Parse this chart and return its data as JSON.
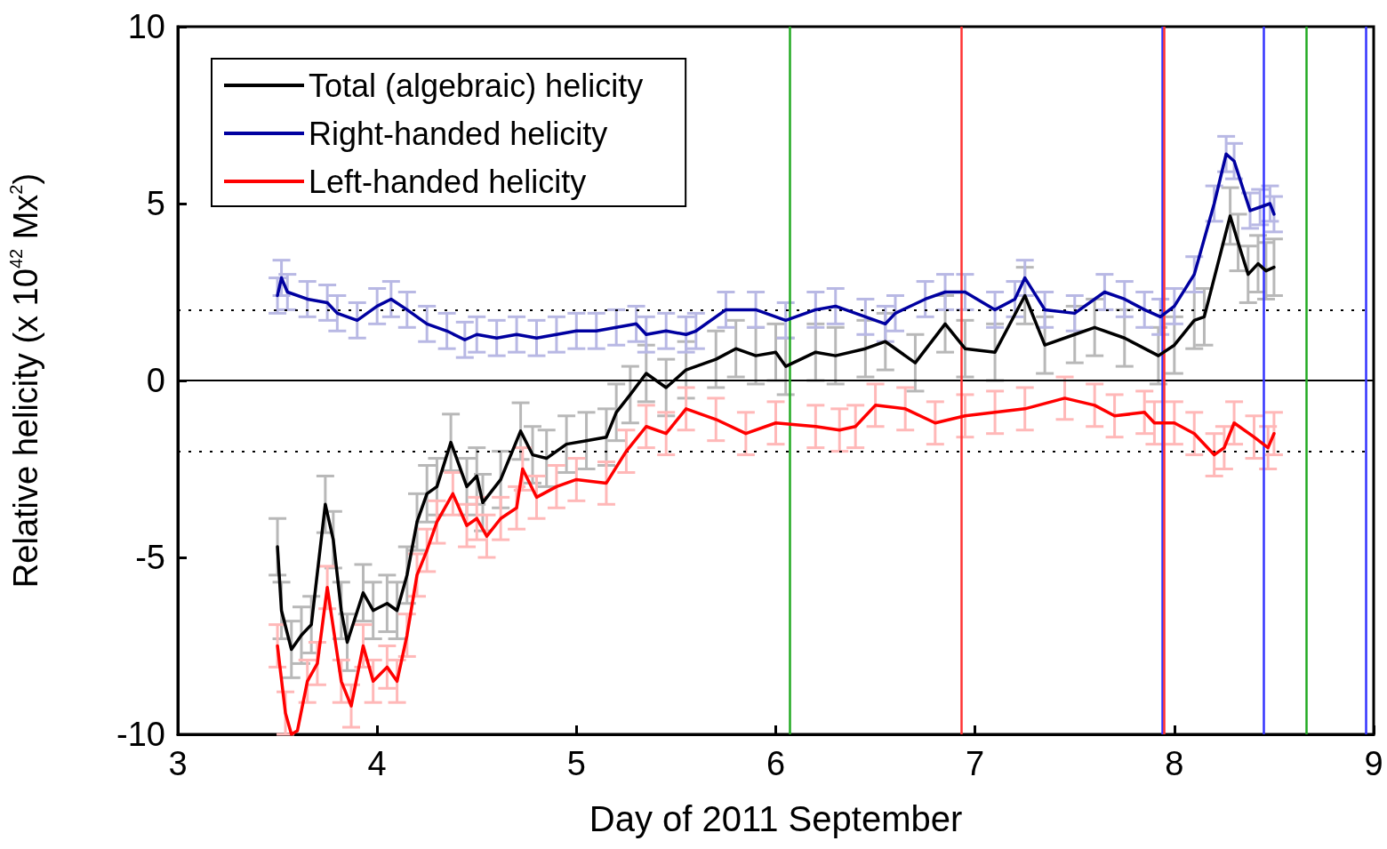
{
  "chart_data": {
    "type": "line",
    "xlabel": "Day of 2011 September",
    "ylabel": "Relative helicity (x 10$^{42}$ Mx$^{2}$)",
    "xlim": [
      3,
      9
    ],
    "xticks": [
      3,
      4,
      5,
      6,
      7,
      8,
      9
    ],
    "ylim": [
      -10,
      10
    ],
    "yticks": [
      -10,
      -5,
      0,
      5,
      10
    ],
    "grid": false,
    "legend": "top left",
    "marker": "none",
    "line_style": "solid",
    "series": [
      {
        "name": "Total (algebraic) helicity",
        "color": "#000000",
        "x": [
          3.5,
          3.52,
          3.57,
          3.62,
          3.67,
          3.74,
          3.78,
          3.82,
          3.85,
          3.93,
          3.98,
          4.05,
          4.1,
          4.15,
          4.2,
          4.25,
          4.3,
          4.37,
          4.45,
          4.5,
          4.53,
          4.62,
          4.72,
          4.78,
          4.85,
          4.95,
          5.05,
          5.15,
          5.2,
          5.27,
          5.35,
          5.45,
          5.55,
          5.7,
          5.8,
          5.9,
          6.0,
          6.05,
          6.2,
          6.3,
          6.45,
          6.55,
          6.7,
          6.85,
          6.95,
          7.1,
          7.25,
          7.35,
          7.5,
          7.6,
          7.75,
          7.92,
          8.0,
          8.1,
          8.15,
          8.28,
          8.32,
          8.37,
          8.42,
          8.46,
          8.5
        ],
        "values": [
          -4.7,
          -6.5,
          -7.6,
          -7.2,
          -6.9,
          -3.5,
          -4.5,
          -6.5,
          -7.4,
          -6.0,
          -6.5,
          -6.3,
          -6.5,
          -5.5,
          -4.0,
          -3.2,
          -3.0,
          -1.75,
          -3.0,
          -2.7,
          -3.45,
          -2.8,
          -1.43,
          -2.1,
          -2.2,
          -1.8,
          -1.7,
          -1.6,
          -0.9,
          -0.4,
          0.2,
          -0.2,
          0.3,
          0.6,
          0.9,
          0.7,
          0.8,
          0.4,
          0.8,
          0.7,
          0.9,
          1.1,
          0.5,
          1.6,
          0.9,
          0.8,
          2.4,
          1.0,
          1.3,
          1.5,
          1.2,
          0.7,
          1.0,
          1.7,
          1.8,
          4.65,
          3.9,
          3.0,
          3.3,
          3.1,
          3.2
        ],
        "errors": [
          0.8,
          0.8,
          0.8,
          0.8,
          0.8,
          0.8,
          0.8,
          0.8,
          0.8,
          0.8,
          0.8,
          0.8,
          0.8,
          0.8,
          0.8,
          0.8,
          0.8,
          0.8,
          0.8,
          0.8,
          0.8,
          0.8,
          0.8,
          0.8,
          0.8,
          0.8,
          0.8,
          0.8,
          0.8,
          0.8,
          0.8,
          0.8,
          0.8,
          0.8,
          0.8,
          0.8,
          0.8,
          0.8,
          0.8,
          0.8,
          0.8,
          0.8,
          0.8,
          0.8,
          0.8,
          0.8,
          0.8,
          0.8,
          0.8,
          0.8,
          0.8,
          0.8,
          0.8,
          0.8,
          0.8,
          0.8,
          0.8,
          0.8,
          0.8,
          0.8,
          0.8
        ]
      },
      {
        "name": "Right-handed helicity",
        "color": "#0000a0",
        "x": [
          3.5,
          3.52,
          3.55,
          3.65,
          3.75,
          3.8,
          3.9,
          4.0,
          4.07,
          4.15,
          4.25,
          4.35,
          4.44,
          4.5,
          4.6,
          4.7,
          4.8,
          4.9,
          5.0,
          5.1,
          5.2,
          5.3,
          5.35,
          5.45,
          5.55,
          5.6,
          5.75,
          5.9,
          6.05,
          6.2,
          6.3,
          6.45,
          6.55,
          6.6,
          6.75,
          6.85,
          6.95,
          7.1,
          7.2,
          7.25,
          7.35,
          7.5,
          7.65,
          7.75,
          7.85,
          7.93,
          8.0,
          8.1,
          8.2,
          8.26,
          8.3,
          8.38,
          8.43,
          8.48,
          8.5
        ],
        "values": [
          2.4,
          2.9,
          2.5,
          2.3,
          2.2,
          1.9,
          1.7,
          2.1,
          2.3,
          2.0,
          1.6,
          1.4,
          1.15,
          1.3,
          1.2,
          1.3,
          1.2,
          1.3,
          1.4,
          1.4,
          1.5,
          1.6,
          1.3,
          1.4,
          1.3,
          1.4,
          2.0,
          2.0,
          1.7,
          2.0,
          2.1,
          1.8,
          1.6,
          1.9,
          2.3,
          2.5,
          2.5,
          2.0,
          2.3,
          2.9,
          2.0,
          1.9,
          2.5,
          2.3,
          2.0,
          1.8,
          2.1,
          3.0,
          5.0,
          6.4,
          6.2,
          4.8,
          4.9,
          5.0,
          4.7
        ],
        "errors": [
          0.5,
          0.5,
          0.5,
          0.5,
          0.5,
          0.5,
          0.5,
          0.5,
          0.5,
          0.5,
          0.5,
          0.5,
          0.5,
          0.5,
          0.5,
          0.5,
          0.5,
          0.5,
          0.5,
          0.5,
          0.5,
          0.5,
          0.5,
          0.5,
          0.5,
          0.5,
          0.5,
          0.5,
          0.5,
          0.5,
          0.5,
          0.5,
          0.5,
          0.5,
          0.5,
          0.5,
          0.5,
          0.5,
          0.5,
          0.5,
          0.5,
          0.5,
          0.5,
          0.5,
          0.5,
          0.5,
          0.5,
          0.5,
          0.5,
          0.5,
          0.5,
          0.5,
          0.5,
          0.5,
          0.5
        ]
      },
      {
        "name": "Left-handed helicity",
        "color": "#ff0000",
        "x": [
          3.5,
          3.54,
          3.57,
          3.6,
          3.65,
          3.7,
          3.75,
          3.82,
          3.87,
          3.93,
          3.98,
          4.05,
          4.1,
          4.15,
          4.2,
          4.25,
          4.3,
          4.38,
          4.45,
          4.5,
          4.55,
          4.62,
          4.7,
          4.73,
          4.8,
          4.9,
          5.0,
          5.15,
          5.25,
          5.35,
          5.45,
          5.55,
          5.7,
          5.85,
          6.0,
          6.2,
          6.32,
          6.4,
          6.5,
          6.65,
          6.8,
          6.95,
          7.1,
          7.25,
          7.45,
          7.6,
          7.7,
          7.85,
          7.9,
          8.0,
          8.1,
          8.2,
          8.25,
          8.3,
          8.4,
          8.47,
          8.5
        ],
        "values": [
          -7.5,
          -9.4,
          -10,
          -9.9,
          -8.5,
          -8.0,
          -5.85,
          -8.5,
          -9.2,
          -7.5,
          -8.5,
          -8.1,
          -8.5,
          -7.2,
          -5.5,
          -4.8,
          -4.0,
          -3.2,
          -4.1,
          -3.9,
          -4.4,
          -3.9,
          -3.6,
          -2.5,
          -3.3,
          -3.0,
          -2.8,
          -2.9,
          -2.0,
          -1.3,
          -1.5,
          -0.8,
          -1.1,
          -1.5,
          -1.2,
          -1.3,
          -1.4,
          -1.3,
          -0.7,
          -0.8,
          -1.2,
          -1.0,
          -0.9,
          -0.8,
          -0.5,
          -0.7,
          -1.0,
          -0.9,
          -1.2,
          -1.2,
          -1.5,
          -2.1,
          -1.9,
          -1.2,
          -1.6,
          -1.9,
          -1.5
        ],
        "errors": [
          0.6,
          0.6,
          null,
          null,
          0.6,
          0.6,
          0.6,
          0.6,
          0.6,
          0.6,
          0.6,
          0.6,
          0.6,
          0.6,
          0.6,
          0.6,
          0.6,
          0.6,
          0.6,
          0.6,
          0.6,
          0.6,
          0.6,
          0.6,
          0.6,
          0.6,
          0.6,
          0.6,
          0.6,
          0.6,
          0.6,
          0.6,
          0.6,
          0.6,
          0.6,
          0.6,
          0.6,
          0.6,
          0.6,
          0.6,
          0.6,
          0.6,
          0.6,
          0.6,
          0.6,
          0.6,
          0.6,
          0.6,
          0.6,
          0.6,
          0.6,
          0.6,
          0.6,
          0.6,
          0.6,
          0.6,
          0.6
        ]
      }
    ],
    "ref_lines": [
      {
        "axis": "y",
        "value": 0,
        "color": "#000000",
        "line_style": "solid"
      },
      {
        "axis": "y",
        "value": 2,
        "color": "#000000",
        "line_style": "dotted"
      },
      {
        "axis": "y",
        "value": -2,
        "color": "#000000",
        "line_style": "dotted"
      },
      {
        "axis": "x",
        "value": 6.07,
        "color": "#22aa22",
        "line_style": "solid"
      },
      {
        "axis": "x",
        "value": 6.93,
        "color": "#ff3333",
        "line_style": "solid"
      },
      {
        "axis": "x",
        "value": 7.94,
        "color": "#3333ff",
        "line_style": "solid"
      },
      {
        "axis": "x",
        "value": 7.95,
        "color": "#ff3333",
        "line_style": "solid"
      },
      {
        "axis": "x",
        "value": 8.45,
        "color": "#3333ff",
        "line_style": "solid"
      },
      {
        "axis": "x",
        "value": 8.66,
        "color": "#22aa22",
        "line_style": "solid"
      },
      {
        "axis": "x",
        "value": 8.96,
        "color": "#3333ff",
        "line_style": "solid"
      }
    ]
  }
}
